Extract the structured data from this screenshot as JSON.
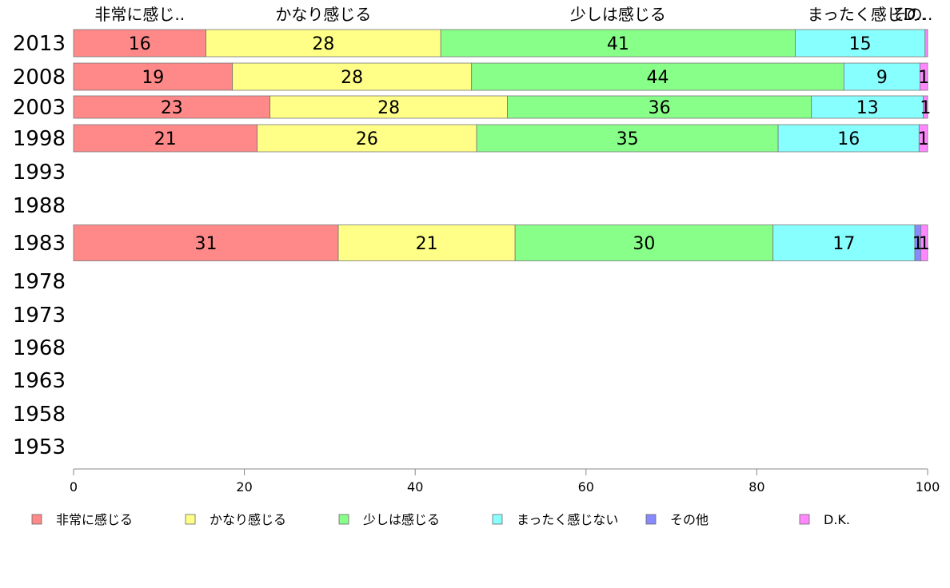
{
  "chart_data": {
    "type": "bar",
    "orientation": "horizontal",
    "stacked": true,
    "categories": [
      "2013",
      "2008",
      "2003",
      "1998",
      "1993",
      "1988",
      "1983",
      "1978",
      "1973",
      "1968",
      "1963",
      "1958",
      "1953"
    ],
    "series": [
      {
        "name": "非常に感じる",
        "short_label": "非常に感じ..",
        "color": "#ff8888",
        "values": [
          15.5,
          18.6,
          23.0,
          21.5,
          null,
          null,
          31.0,
          null,
          null,
          null,
          null,
          null,
          null
        ],
        "labels": [
          "16",
          "19",
          "23",
          "21",
          "",
          "",
          "31",
          "",
          "",
          "",
          "",
          "",
          ""
        ]
      },
      {
        "name": "かなり感じる",
        "short_label": "かなり感じる",
        "color": "#ffff88",
        "values": [
          27.5,
          28.0,
          27.8,
          25.7,
          null,
          null,
          20.7,
          null,
          null,
          null,
          null,
          null,
          null
        ],
        "labels": [
          "28",
          "28",
          "28",
          "26",
          "",
          "",
          "21",
          "",
          "",
          "",
          "",
          "",
          ""
        ]
      },
      {
        "name": "少しは感じる",
        "short_label": "少しは感じる",
        "color": "#88ff88",
        "values": [
          41.5,
          43.6,
          35.6,
          35.3,
          null,
          null,
          30.2,
          null,
          null,
          null,
          null,
          null,
          null
        ],
        "labels": [
          "41",
          "44",
          "36",
          "35",
          "",
          "",
          "30",
          "",
          "",
          "",
          "",
          "",
          ""
        ]
      },
      {
        "name": "まったく感じない",
        "short_label": "まったく感じ..",
        "color": "#88ffff",
        "values": [
          15.2,
          8.9,
          13.1,
          16.5,
          null,
          null,
          16.6,
          null,
          null,
          null,
          null,
          null,
          null
        ],
        "labels": [
          "15",
          "9",
          "13",
          "16",
          "",
          "",
          "17",
          "",
          "",
          "",
          "",
          "",
          ""
        ]
      },
      {
        "name": "その他",
        "short_label": "その..",
        "color": "#8888ff",
        "values": [
          0.0,
          0.0,
          0.0,
          0.0,
          null,
          null,
          0.7,
          null,
          null,
          null,
          null,
          null,
          null
        ],
        "labels": [
          "",
          "",
          "",
          "",
          "",
          "",
          "1",
          "",
          "",
          "",
          "",
          "",
          ""
        ]
      },
      {
        "name": "D.K.",
        "short_label": "D..",
        "color": "#ff88ff",
        "values": [
          0.3,
          0.9,
          0.5,
          1.0,
          null,
          null,
          0.8,
          null,
          null,
          null,
          null,
          null,
          null
        ],
        "labels": [
          "",
          "1",
          "1",
          "1",
          "",
          "",
          "1",
          "",
          "",
          "",
          "",
          "",
          ""
        ]
      }
    ],
    "xlim": [
      0,
      100
    ],
    "xticks": [
      0,
      20,
      40,
      60,
      80,
      100
    ],
    "title": "",
    "xlabel": "",
    "ylabel": "",
    "grid": false,
    "legend_position": "bottom"
  }
}
